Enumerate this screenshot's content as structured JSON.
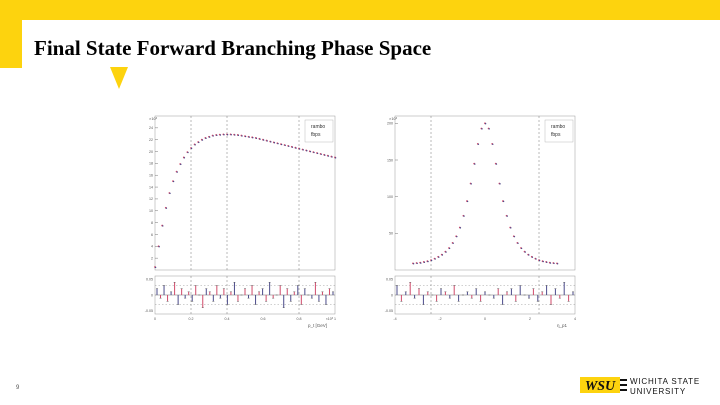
{
  "slide": {
    "title": "Final State Forward Branching Phase Space",
    "page_number": "9"
  },
  "logo": {
    "mark": "WSU",
    "line1": "WICHITA STATE",
    "line2": "UNIVERSITY"
  },
  "colors": {
    "banner": "#fdd30e",
    "series_1": "#d04a6a",
    "series_2": "#4a4a8a"
  },
  "chart_data": [
    {
      "type": "scatter",
      "exponent_label": "×10³",
      "legend": [
        "rambo",
        "fbps"
      ],
      "legend_placement": "top-right",
      "xlabel": "p_t [GeV]",
      "x_exponent": "×10³",
      "xlim": [
        0,
        1.0
      ],
      "ylim": [
        0,
        26
      ],
      "yticks": [
        2,
        4,
        6,
        8,
        10,
        12,
        14,
        16,
        18,
        20,
        22,
        24
      ],
      "xticks": [
        "0",
        "0.2",
        "0.4",
        "0.6",
        "0.8",
        "1"
      ],
      "vlines": [
        0.2,
        0.4,
        0.8
      ],
      "x": [
        0.0,
        0.02,
        0.04,
        0.06,
        0.08,
        0.1,
        0.12,
        0.14,
        0.16,
        0.18,
        0.2,
        0.22,
        0.24,
        0.26,
        0.28,
        0.3,
        0.32,
        0.34,
        0.36,
        0.38,
        0.4,
        0.42,
        0.44,
        0.46,
        0.48,
        0.5,
        0.52,
        0.54,
        0.56,
        0.58,
        0.6,
        0.62,
        0.64,
        0.66,
        0.68,
        0.7,
        0.72,
        0.74,
        0.76,
        0.78,
        0.8,
        0.82,
        0.84,
        0.86,
        0.88,
        0.9,
        0.92,
        0.94,
        0.96,
        0.98,
        1.0
      ],
      "y": [
        0.5,
        4.0,
        7.5,
        10.5,
        13.0,
        15.0,
        16.6,
        17.9,
        19.0,
        19.9,
        20.6,
        21.2,
        21.6,
        22.0,
        22.3,
        22.5,
        22.7,
        22.8,
        22.85,
        22.9,
        22.9,
        22.9,
        22.85,
        22.8,
        22.7,
        22.6,
        22.5,
        22.4,
        22.3,
        22.15,
        22.0,
        21.85,
        21.7,
        21.55,
        21.4,
        21.25,
        21.1,
        20.95,
        20.8,
        20.65,
        20.5,
        20.35,
        20.2,
        20.05,
        19.9,
        19.75,
        19.6,
        19.45,
        19.3,
        19.15,
        19.0
      ],
      "ratio_ylim": [
        -0.06,
        0.06
      ],
      "ratio_yticks": [
        "0.05",
        "0",
        "-0.05"
      ],
      "ratio": [
        0.02,
        -0.01,
        0.03,
        -0.02,
        0.01,
        0.04,
        -0.03,
        0.02,
        -0.01,
        0.01,
        -0.02,
        0.03,
        0.0,
        -0.04,
        0.02,
        0.01,
        -0.02,
        0.03,
        -0.01,
        0.02,
        -0.03,
        0.01,
        0.04,
        -0.02,
        0.0,
        0.02,
        -0.01,
        0.03,
        -0.03,
        0.01,
        0.02,
        -0.02,
        0.04,
        -0.01,
        0.0,
        0.03,
        -0.04,
        0.02,
        -0.02,
        0.01,
        0.03,
        -0.03,
        0.02,
        0.0,
        -0.01,
        0.04,
        -0.02,
        0.01,
        -0.03,
        0.02,
        0.01
      ]
    },
    {
      "type": "scatter",
      "exponent_label": "×10³",
      "legend": [
        "rambo",
        "fbps"
      ],
      "legend_placement": "top-right",
      "xlabel": "η_p1",
      "xlim": [
        -5,
        5
      ],
      "ylim": [
        0,
        210
      ],
      "yticks": [
        50,
        100,
        150,
        200
      ],
      "xticks": [
        "-4",
        "-2",
        "0",
        "2",
        "4"
      ],
      "vlines": [
        -3,
        3
      ],
      "x": [
        -4.0,
        -3.8,
        -3.6,
        -3.4,
        -3.2,
        -3.0,
        -2.8,
        -2.6,
        -2.4,
        -2.2,
        -2.0,
        -1.8,
        -1.6,
        -1.4,
        -1.2,
        -1.0,
        -0.8,
        -0.6,
        -0.4,
        -0.2,
        0.0,
        0.2,
        0.4,
        0.6,
        0.8,
        1.0,
        1.2,
        1.4,
        1.6,
        1.8,
        2.0,
        2.2,
        2.4,
        2.6,
        2.8,
        3.0,
        3.2,
        3.4,
        3.6,
        3.8,
        4.0
      ],
      "y": [
        9,
        9.5,
        10,
        11,
        12,
        13.5,
        15.5,
        18,
        21,
        25,
        30,
        37,
        46,
        58,
        74,
        94,
        118,
        145,
        172,
        193,
        200,
        193,
        172,
        145,
        118,
        94,
        74,
        58,
        46,
        37,
        30,
        25,
        21,
        18,
        15.5,
        13.5,
        12,
        11,
        10,
        9.5,
        9
      ],
      "ratio_ylim": [
        -0.06,
        0.06
      ],
      "ratio_yticks": [
        "0.05",
        "0",
        "-0.05"
      ],
      "ratio": [
        0.03,
        -0.02,
        0.01,
        0.04,
        -0.01,
        0.02,
        -0.03,
        0.01,
        0.0,
        -0.02,
        0.02,
        0.01,
        -0.01,
        0.03,
        -0.02,
        0.0,
        0.01,
        -0.01,
        0.02,
        -0.02,
        0.01,
        0.0,
        -0.01,
        0.02,
        -0.03,
        0.01,
        0.02,
        -0.02,
        0.03,
        0.0,
        -0.01,
        0.02,
        -0.02,
        0.01,
        0.03,
        -0.03,
        0.02,
        -0.01,
        0.04,
        -0.02,
        0.01
      ]
    }
  ]
}
